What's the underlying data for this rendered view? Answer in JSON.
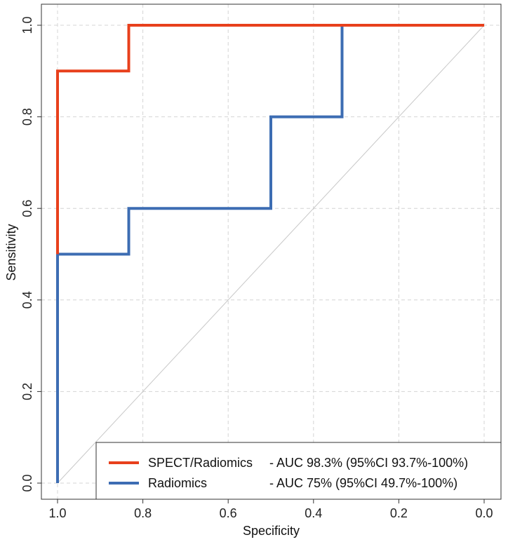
{
  "chart_data": {
    "type": "line",
    "title": "",
    "xlabel": "Specificity",
    "ylabel": "Sensitivity",
    "xlim": [
      1.05,
      -0.04
    ],
    "ylim": [
      -0.04,
      1.04
    ],
    "x_reversed": true,
    "grid": true,
    "x_ticks": [
      1.0,
      0.8,
      0.6,
      0.4,
      0.2,
      0.0
    ],
    "x_tick_labels": [
      "1.0",
      "0.8",
      "0.6",
      "0.4",
      "0.2",
      "0.0"
    ],
    "y_ticks": [
      0.0,
      0.2,
      0.4,
      0.6,
      0.8,
      1.0
    ],
    "y_tick_labels": [
      "0.0",
      "0.2",
      "0.4",
      "0.6",
      "0.8",
      "1.0"
    ],
    "reference_line": {
      "from": [
        1.0,
        0.0
      ],
      "to": [
        0.0,
        1.0
      ],
      "color": "#c8c8c8"
    },
    "legend_position": "bottom-right",
    "series": [
      {
        "name": "SPECT/Radiomics",
        "legend_label": "SPECT/Radiomics",
        "legend_desc": "- AUC 98.3% (95%CI 93.7%-100%)",
        "color": "#e8401c",
        "points": [
          [
            1.0,
            0.5
          ],
          [
            1.0,
            0.9
          ],
          [
            0.833,
            0.9
          ],
          [
            0.833,
            1.0
          ],
          [
            0.333,
            1.0
          ],
          [
            0.0,
            1.0
          ]
        ]
      },
      {
        "name": "Radiomics",
        "legend_label": "Radiomics",
        "legend_desc": "- AUC 75% (95%CI 49.7%-100%)",
        "color": "#3d6db3",
        "points": [
          [
            1.0,
            0.0
          ],
          [
            1.0,
            0.5
          ],
          [
            0.833,
            0.5
          ],
          [
            0.833,
            0.6
          ],
          [
            0.5,
            0.6
          ],
          [
            0.5,
            0.8
          ],
          [
            0.333,
            0.8
          ],
          [
            0.333,
            1.0
          ],
          [
            0.0,
            1.0
          ]
        ]
      }
    ]
  }
}
